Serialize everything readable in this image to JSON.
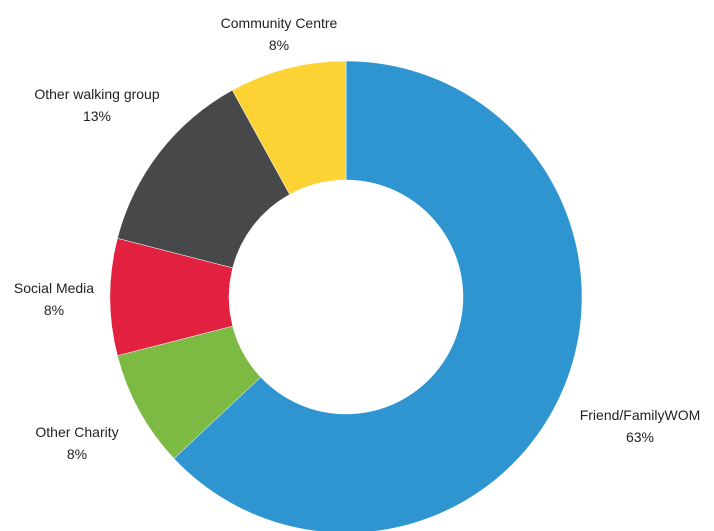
{
  "chart_data": {
    "type": "pie",
    "variant": "donut",
    "title": "",
    "start": "top",
    "direction": "clockwise",
    "slices": [
      {
        "label": "Friend/FamilyWOM",
        "value": 63,
        "value_label": "63%",
        "color": "#2e95d1"
      },
      {
        "label": "Other Charity",
        "value": 8,
        "value_label": "8%",
        "color": "#7dba43"
      },
      {
        "label": "Social Media",
        "value": 8,
        "value_label": "8%",
        "color": "#e2203f"
      },
      {
        "label": "Other walking group",
        "value": 13,
        "value_label": "13%",
        "color": "#46484a"
      },
      {
        "label": "Community Centre",
        "value": 8,
        "value_label": "8%",
        "color": "#fcd235"
      }
    ]
  }
}
